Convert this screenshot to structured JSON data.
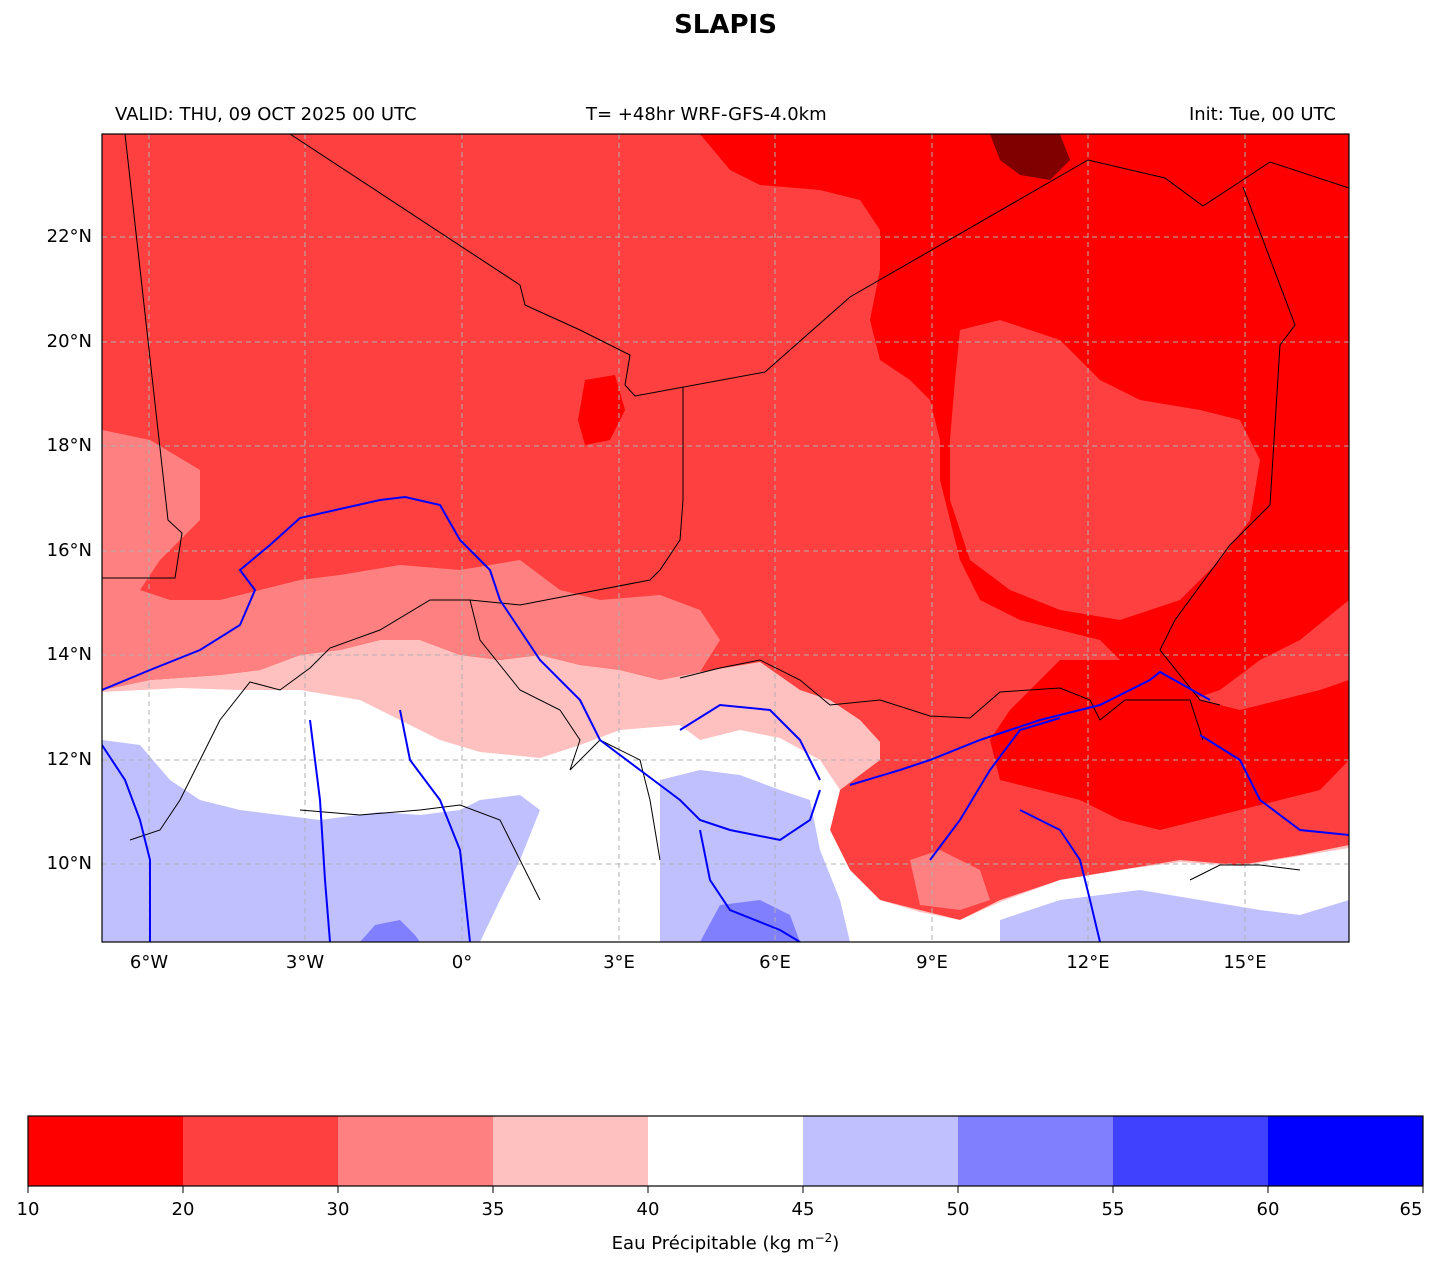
{
  "title": "SLAPIS",
  "header": {
    "valid": "VALID: THU, 09 OCT 2025 00 UTC",
    "lead": "T= +48hr WRF-GFS-4.0km",
    "init": "Init: Tue, 00 UTC"
  },
  "map": {
    "lat_labels": [
      "22°N",
      "20°N",
      "18°N",
      "16°N",
      "14°N",
      "12°N",
      "10°N"
    ],
    "lon_labels": [
      "6°W",
      "3°W",
      "0°",
      "3°E",
      "6°E",
      "9°E",
      "12°E",
      "15°E"
    ],
    "river_color": "#0000ff",
    "border_color": "#000000",
    "gridline_color": "#b0b0b0"
  },
  "colorbar": {
    "label": "Eau Précipitable (kg m",
    "label_superscript": "−2",
    "label_close": ")",
    "ticks": [
      "10",
      "20",
      "30",
      "35",
      "40",
      "45",
      "50",
      "55",
      "60",
      "65"
    ],
    "colors": [
      "#ff0000",
      "#ff4040",
      "#ff8080",
      "#ffc0c0",
      "#ffffff",
      "#c0c0ff",
      "#8080ff",
      "#4040ff",
      "#0000ff"
    ]
  }
}
